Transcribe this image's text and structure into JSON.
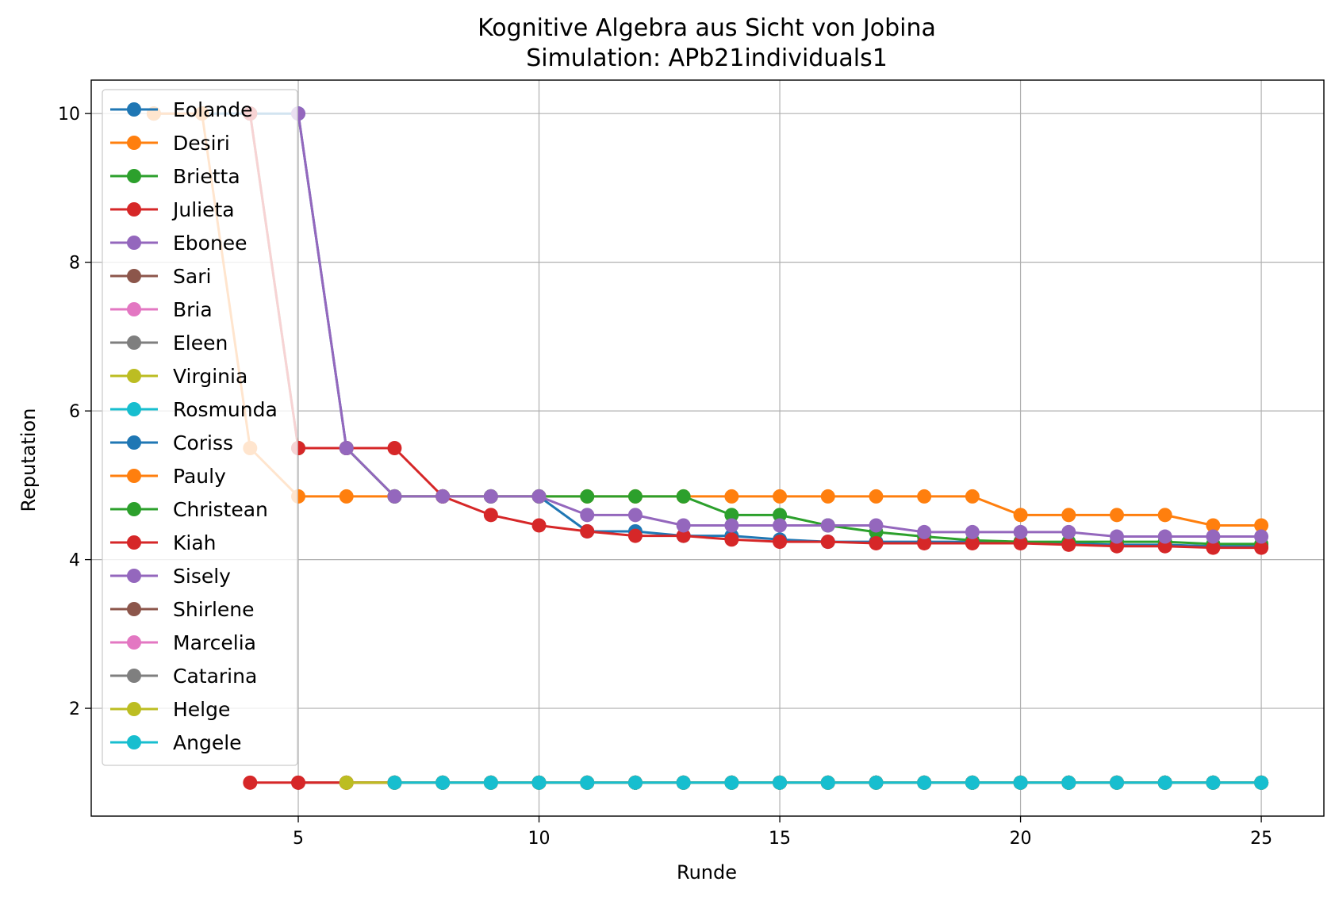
{
  "chart_data": {
    "type": "line",
    "title": "Kognitive Algebra aus Sicht von Jobina",
    "subtitle": "Simulation: APb21individuals1",
    "xlabel": "Runde",
    "ylabel": "Reputation",
    "xlim": [
      0.7,
      26.3
    ],
    "ylim": [
      0.55,
      10.45
    ],
    "xticks": [
      5,
      10,
      15,
      20,
      25
    ],
    "yticks": [
      2,
      4,
      6,
      8,
      10
    ],
    "grid": true,
    "legend_position": "upper-left",
    "series": [
      {
        "name": "Eolande",
        "color": "#1f77b4",
        "x": [
          2,
          3,
          4,
          5,
          6,
          7,
          8,
          9,
          10,
          11,
          12,
          13,
          14,
          15,
          16,
          17,
          18,
          19,
          20,
          21,
          22,
          23,
          24,
          25
        ],
        "y": [
          10,
          10,
          10,
          10,
          5.5,
          4.85,
          4.85,
          4.85,
          4.85,
          4.38,
          4.38,
          4.32,
          4.32,
          4.27,
          4.24,
          4.24,
          4.24,
          4.24,
          4.24,
          4.22,
          4.2,
          4.2,
          4.18,
          4.18
        ]
      },
      {
        "name": "Desiri",
        "color": "#ff7f0e",
        "x": [
          2,
          3,
          4,
          5,
          6,
          7,
          8,
          9,
          10,
          11,
          12,
          13,
          14,
          15,
          16,
          17,
          18,
          19,
          20,
          21,
          22,
          23,
          24,
          25
        ],
        "y": [
          10,
          10,
          5.5,
          4.85,
          4.85,
          4.85,
          4.85,
          4.85,
          4.85,
          4.85,
          4.85,
          4.85,
          4.85,
          4.85,
          4.85,
          4.85,
          4.85,
          4.85,
          4.6,
          4.6,
          4.6,
          4.6,
          4.46,
          4.46
        ]
      },
      {
        "name": "Brietta",
        "color": "#2ca02c",
        "x": [
          4,
          5,
          6,
          7,
          8,
          9,
          10,
          11,
          12,
          13,
          14,
          15,
          16,
          17,
          18,
          19,
          20,
          21,
          22,
          23,
          24,
          25
        ],
        "y": [
          10,
          5.5,
          5.5,
          4.85,
          4.85,
          4.85,
          4.85,
          4.85,
          4.85,
          4.85,
          4.6,
          4.6,
          4.46,
          4.37,
          4.31,
          4.26,
          4.24,
          4.24,
          4.24,
          4.24,
          4.21,
          4.21
        ]
      },
      {
        "name": "Julieta",
        "color": "#d62728",
        "x": [
          4,
          5,
          6,
          7,
          8,
          9,
          10,
          11,
          12,
          13,
          14,
          15,
          16,
          17,
          18,
          19,
          20,
          21,
          22,
          23,
          24,
          25
        ],
        "y": [
          10,
          5.5,
          5.5,
          5.5,
          4.85,
          4.6,
          4.46,
          4.38,
          4.32,
          4.32,
          4.27,
          4.24,
          4.24,
          4.22,
          4.22,
          4.22,
          4.22,
          4.2,
          4.18,
          4.18,
          4.16,
          4.16
        ]
      },
      {
        "name": "Ebonee",
        "color": "#9467bd",
        "x": [
          5,
          6,
          7,
          8,
          9,
          10,
          11,
          12,
          13,
          14,
          15,
          16,
          17,
          18,
          19,
          20,
          21,
          22,
          23,
          24,
          25
        ],
        "y": [
          10,
          5.5,
          4.85,
          4.85,
          4.85,
          4.85,
          4.6,
          4.6,
          4.46,
          4.46,
          4.46,
          4.46,
          4.46,
          4.37,
          4.37,
          4.37,
          4.37,
          4.31,
          4.31,
          4.31,
          4.31
        ]
      },
      {
        "name": "Sari",
        "color": "#8c564b",
        "x": [
          5,
          6,
          7,
          8,
          9,
          10,
          11,
          12,
          13,
          14,
          15,
          16,
          17,
          18,
          19,
          20,
          21,
          22,
          23,
          24,
          25
        ],
        "y": [
          1,
          1,
          1,
          1,
          1,
          1,
          1,
          1,
          1,
          1,
          1,
          1,
          1,
          1,
          1,
          1,
          1,
          1,
          1,
          1,
          1
        ]
      },
      {
        "name": "Bria",
        "color": "#e377c2",
        "x": [
          6,
          7,
          8,
          9,
          10,
          11,
          12,
          13,
          14,
          15,
          16,
          17,
          18,
          19,
          20,
          21,
          22,
          23,
          24,
          25
        ],
        "y": [
          1,
          1,
          1,
          1,
          1,
          1,
          1,
          1,
          1,
          1,
          1,
          1,
          1,
          1,
          1,
          1,
          1,
          1,
          1,
          1
        ]
      },
      {
        "name": "Eleen",
        "color": "#7f7f7f",
        "x": [
          6,
          7,
          8,
          9,
          10,
          11,
          12,
          13,
          14,
          15,
          16,
          17,
          18,
          19,
          20,
          21,
          22,
          23,
          24,
          25
        ],
        "y": [
          1,
          1,
          1,
          1,
          1,
          1,
          1,
          1,
          1,
          1,
          1,
          1,
          1,
          1,
          1,
          1,
          1,
          1,
          1,
          1
        ]
      },
      {
        "name": "Virginia",
        "color": "#bcbd22",
        "x": [
          6,
          7,
          8,
          9,
          10,
          11,
          12,
          13,
          14,
          15,
          16,
          17,
          18,
          19,
          20,
          21,
          22,
          23,
          24,
          25
        ],
        "y": [
          1,
          1,
          1,
          1,
          1,
          1,
          1,
          1,
          1,
          1,
          1,
          1,
          1,
          1,
          1,
          1,
          1,
          1,
          1,
          1
        ]
      },
      {
        "name": "Rosmunda",
        "color": "#17becf",
        "x": [
          7,
          8,
          9,
          10,
          11,
          12,
          13,
          14,
          15,
          16,
          17,
          18,
          19,
          20,
          21,
          22,
          23,
          24,
          25
        ],
        "y": [
          1,
          1,
          1,
          1,
          1,
          1,
          1,
          1,
          1,
          1,
          1,
          1,
          1,
          1,
          1,
          1,
          1,
          1,
          1
        ]
      },
      {
        "name": "Coriss",
        "color": "#1f77b4",
        "x": [
          7,
          8,
          9,
          10,
          11,
          12,
          13,
          14,
          15,
          16,
          17,
          18,
          19,
          20,
          21,
          22,
          23,
          24,
          25
        ],
        "y": [
          1,
          1,
          1,
          1,
          1,
          1,
          1,
          1,
          1,
          1,
          1,
          1,
          1,
          1,
          1,
          1,
          1,
          1,
          1
        ]
      },
      {
        "name": "Pauly",
        "color": "#ff7f0e",
        "x": [
          7,
          8,
          9,
          10,
          11,
          12,
          13,
          14,
          15,
          16,
          17,
          18,
          19,
          20,
          21,
          22,
          23,
          24,
          25
        ],
        "y": [
          1,
          1,
          1,
          1,
          1,
          1,
          1,
          1,
          1,
          1,
          1,
          1,
          1,
          1,
          1,
          1,
          1,
          1,
          1
        ]
      },
      {
        "name": "Christean",
        "color": "#2ca02c",
        "x": [
          7,
          8,
          9,
          10,
          11,
          12,
          13,
          14,
          15,
          16,
          17,
          18,
          19,
          20,
          21,
          22,
          23,
          24,
          25
        ],
        "y": [
          1,
          1,
          1,
          1,
          1,
          1,
          1,
          1,
          1,
          1,
          1,
          1,
          1,
          1,
          1,
          1,
          1,
          1,
          1
        ]
      },
      {
        "name": "Kiah",
        "color": "#d62728",
        "x": [
          4,
          5,
          6,
          7,
          8,
          9,
          10,
          11,
          12,
          13,
          14,
          15,
          16,
          17,
          18,
          19,
          20,
          21,
          22,
          23,
          24,
          25
        ],
        "y": [
          1,
          1,
          1,
          1,
          1,
          1,
          1,
          1,
          1,
          1,
          1,
          1,
          1,
          1,
          1,
          1,
          1,
          1,
          1,
          1,
          1,
          1
        ]
      },
      {
        "name": "Sisely",
        "color": "#9467bd",
        "x": [
          7,
          8,
          9,
          10,
          11,
          12,
          13,
          14,
          15,
          16,
          17,
          18,
          19,
          20,
          21,
          22,
          23,
          24,
          25
        ],
        "y": [
          1,
          1,
          1,
          1,
          1,
          1,
          1,
          1,
          1,
          1,
          1,
          1,
          1,
          1,
          1,
          1,
          1,
          1,
          1
        ]
      },
      {
        "name": "Shirlene",
        "color": "#8c564b",
        "x": [
          7,
          8,
          9,
          10,
          11,
          12,
          13,
          14,
          15,
          16,
          17,
          18,
          19,
          20,
          21,
          22,
          23,
          24,
          25
        ],
        "y": [
          1,
          1,
          1,
          1,
          1,
          1,
          1,
          1,
          1,
          1,
          1,
          1,
          1,
          1,
          1,
          1,
          1,
          1,
          1
        ]
      },
      {
        "name": "Marcelia",
        "color": "#e377c2",
        "x": [
          7,
          8,
          9,
          10,
          11,
          12,
          13,
          14,
          15,
          16,
          17,
          18,
          19,
          20,
          21,
          22,
          23,
          24,
          25
        ],
        "y": [
          1,
          1,
          1,
          1,
          1,
          1,
          1,
          1,
          1,
          1,
          1,
          1,
          1,
          1,
          1,
          1,
          1,
          1,
          1
        ]
      },
      {
        "name": "Catarina",
        "color": "#7f7f7f",
        "x": [
          7,
          8,
          9,
          10,
          11,
          12,
          13,
          14,
          15,
          16,
          17,
          18,
          19,
          20,
          21,
          22,
          23,
          24,
          25
        ],
        "y": [
          1,
          1,
          1,
          1,
          1,
          1,
          1,
          1,
          1,
          1,
          1,
          1,
          1,
          1,
          1,
          1,
          1,
          1,
          1
        ]
      },
      {
        "name": "Helge",
        "color": "#bcbd22",
        "x": [
          6,
          7,
          8,
          9,
          10,
          11,
          12,
          13,
          14,
          15,
          16,
          17,
          18,
          19,
          20,
          21,
          22,
          23,
          24,
          25
        ],
        "y": [
          1,
          1,
          1,
          1,
          1,
          1,
          1,
          1,
          1,
          1,
          1,
          1,
          1,
          1,
          1,
          1,
          1,
          1,
          1,
          1
        ]
      },
      {
        "name": "Angele",
        "color": "#17becf",
        "x": [
          7,
          8,
          9,
          10,
          11,
          12,
          13,
          14,
          15,
          16,
          17,
          18,
          19,
          20,
          21,
          22,
          23,
          24,
          25
        ],
        "y": [
          1,
          1,
          1,
          1,
          1,
          1,
          1,
          1,
          1,
          1,
          1,
          1,
          1,
          1,
          1,
          1,
          1,
          1,
          1
        ]
      }
    ]
  }
}
